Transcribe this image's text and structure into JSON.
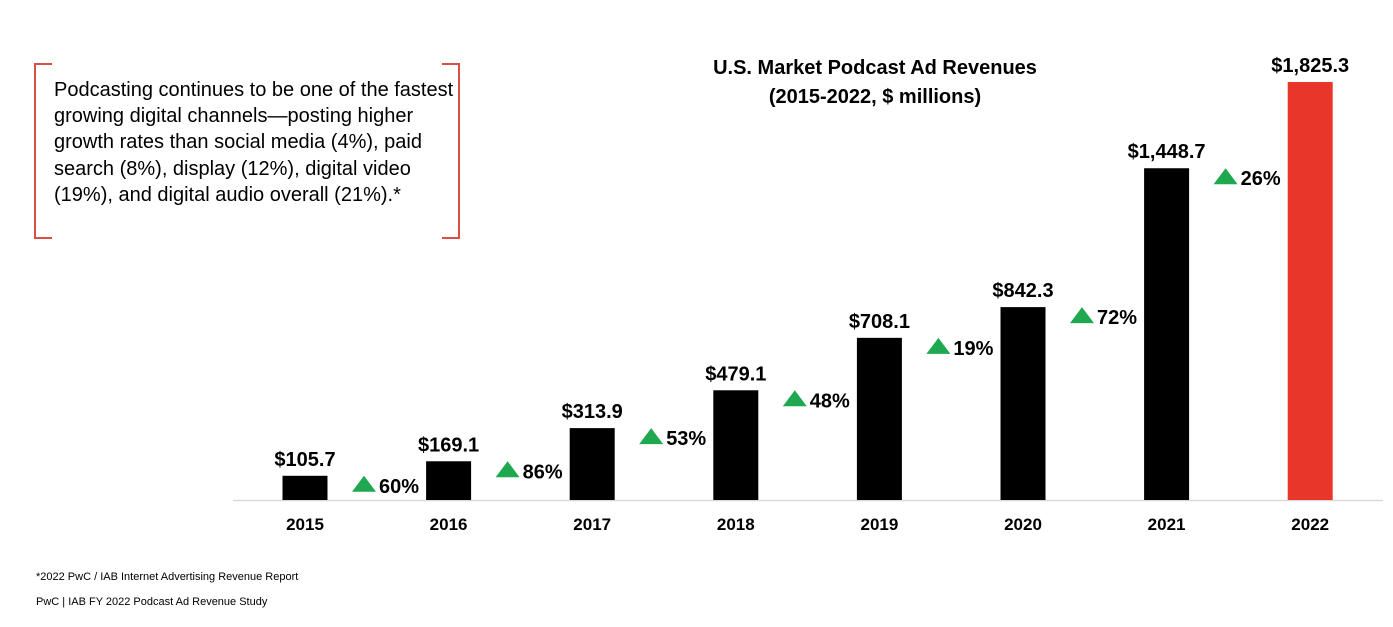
{
  "callout": {
    "text": "Podcasting continues to be one of the fastest growing digital channels—posting higher growth rates than social media (4%), paid search (8%), display (12%), digital video (19%), and digital audio overall (21%).*",
    "bracket_color": "#d94f45"
  },
  "chart_data": {
    "type": "bar",
    "title": "U.S. Market Podcast Ad Revenues",
    "subtitle": "(2015-2022, $ millions)",
    "xlabel": "",
    "ylabel": "",
    "ylim": [
      0,
      1825.3
    ],
    "grid": false,
    "categories": [
      "2015",
      "2016",
      "2017",
      "2018",
      "2019",
      "2020",
      "2021",
      "2022"
    ],
    "values": [
      105.7,
      169.1,
      313.9,
      479.1,
      708.1,
      842.3,
      1448.7,
      1825.3
    ],
    "value_labels": [
      "$105.7",
      "$169.1",
      "$313.9",
      "$479.1",
      "$708.1",
      "$842.3",
      "$1,448.7",
      "$1,825.3"
    ],
    "growth_labels": [
      "60%",
      "86%",
      "53%",
      "48%",
      "19%",
      "72%",
      "26%"
    ],
    "growth_indicator": "up-triangle",
    "colors": {
      "bar": "#000000",
      "highlight_bar": "#e8372a",
      "growth_arrow": "#1fa84f",
      "axis": "#d9d9d9"
    },
    "highlight_index": 7
  },
  "footer": {
    "source": "*2022 PwC / IAB Internet Advertising Revenue Report",
    "credit": "PwC |  IAB FY 2022 Podcast Ad Revenue Study"
  }
}
